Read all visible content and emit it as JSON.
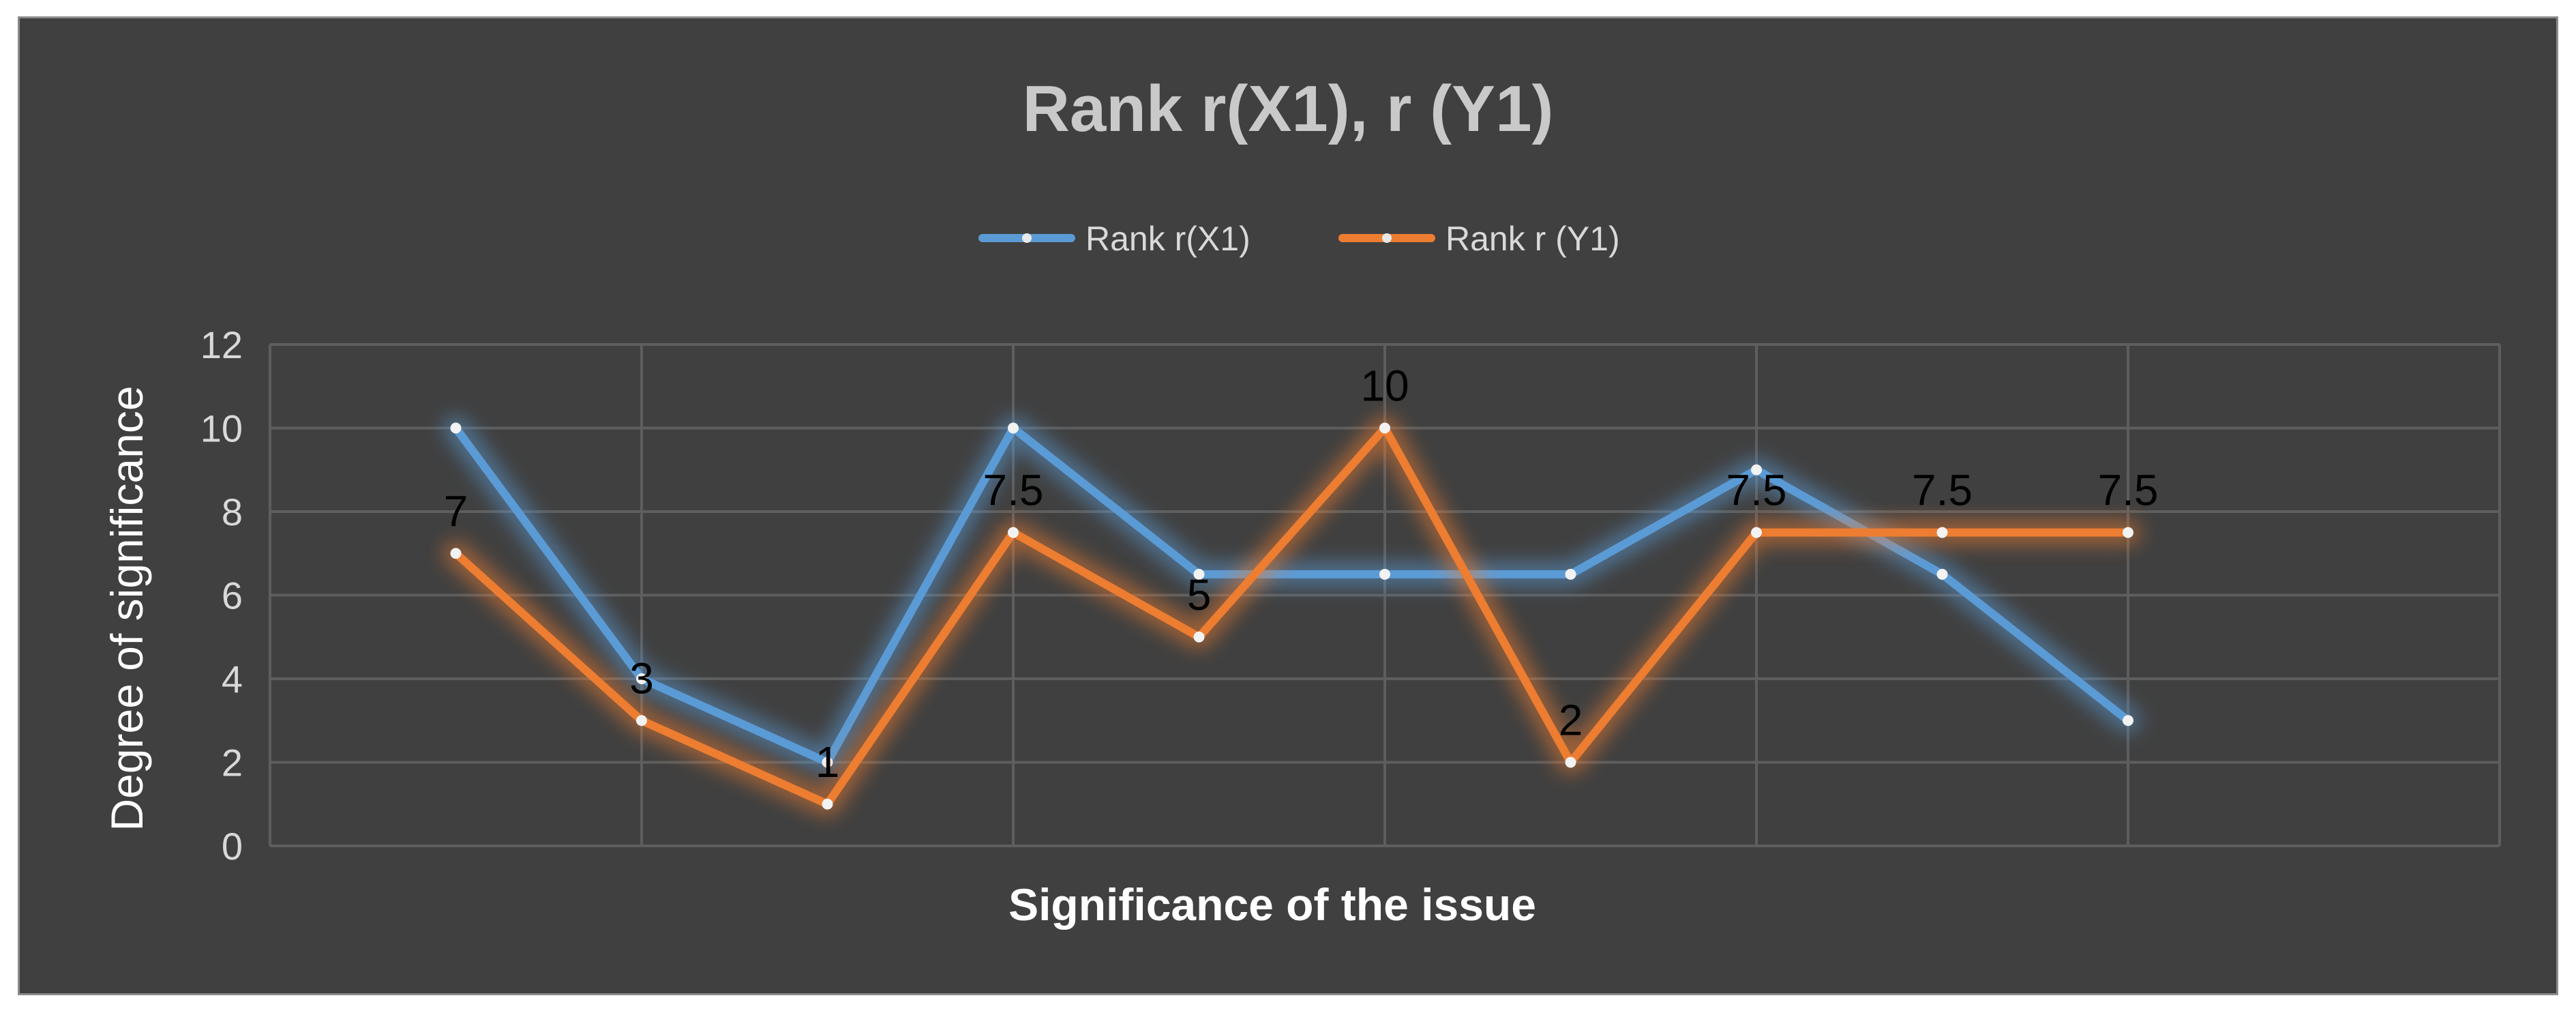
{
  "chart_data": {
    "type": "line",
    "title": "Rank r(X1), r (Y1)",
    "xlabel": "Significance of the issue",
    "ylabel": "Degree of significance",
    "ylim": [
      0,
      12
    ],
    "yticks": [
      0,
      2,
      4,
      6,
      8,
      10,
      12
    ],
    "grid": true,
    "legend_position": "top",
    "series": [
      {
        "name": "Rank r(X1)",
        "color": "#5b9bd5",
        "values": [
          10,
          4,
          2,
          10,
          6.5,
          6.5,
          6.5,
          9,
          6.5,
          3
        ],
        "data_labels": []
      },
      {
        "name": "Rank r (Y1)",
        "color": "#ed7d31",
        "values": [
          7,
          3,
          1,
          7.5,
          5,
          10,
          2,
          7.5,
          7.5,
          7.5
        ],
        "data_labels": [
          "7",
          "3",
          "1",
          "7.5",
          "5",
          "10",
          "2",
          "7.5",
          "7.5",
          "7.5"
        ]
      }
    ]
  }
}
